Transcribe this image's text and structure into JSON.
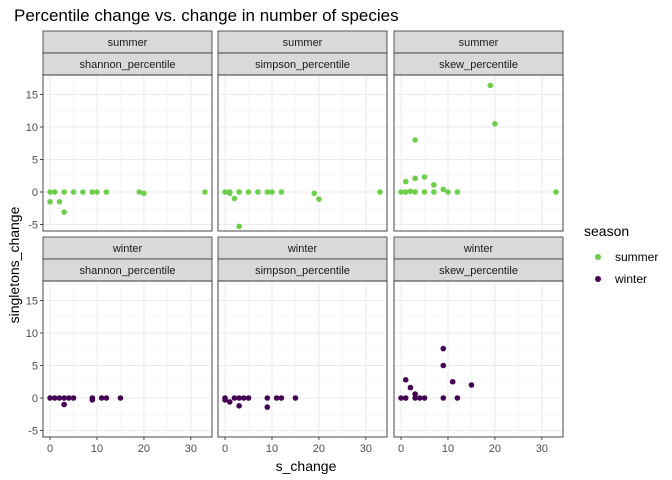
{
  "chart_data": {
    "type": "scatter",
    "title": "Percentile change vs. change in number of species",
    "xlabel": "s_change",
    "ylabel": "singletons_change",
    "xlim": [
      -1.5,
      34.5
    ],
    "ylim": [
      -6,
      18
    ],
    "x_ticks": [
      0,
      10,
      20,
      30
    ],
    "y_ticks": [
      -5,
      0,
      5,
      10,
      15
    ],
    "grid": true,
    "facet_rows": [
      "summer",
      "winter"
    ],
    "facet_cols": [
      "shannon_percentile",
      "simpson_percentile",
      "skew_percentile"
    ],
    "legend": {
      "title": "season",
      "position": "right",
      "entries": [
        {
          "label": "summer",
          "color": "#6CCE4B"
        },
        {
          "label": "winter",
          "color": "#440154"
        }
      ]
    },
    "panels": [
      {
        "season": "summer",
        "metric": "shannon_percentile",
        "color": "#6CCE4B",
        "points": [
          [
            0,
            -1.5
          ],
          [
            0,
            0
          ],
          [
            1,
            0
          ],
          [
            2,
            -1.5
          ],
          [
            3,
            0
          ],
          [
            3,
            -3.1
          ],
          [
            5,
            0
          ],
          [
            7,
            0
          ],
          [
            9,
            0
          ],
          [
            10,
            0
          ],
          [
            12,
            0
          ],
          [
            19,
            0
          ],
          [
            20,
            -0.2
          ],
          [
            33,
            0
          ]
        ]
      },
      {
        "season": "summer",
        "metric": "simpson_percentile",
        "color": "#6CCE4B",
        "points": [
          [
            0,
            0
          ],
          [
            1,
            0
          ],
          [
            1,
            -0.2
          ],
          [
            2,
            -1
          ],
          [
            3,
            0
          ],
          [
            3,
            -5.3
          ],
          [
            5,
            0
          ],
          [
            7,
            0
          ],
          [
            9,
            0
          ],
          [
            10,
            0
          ],
          [
            12,
            0
          ],
          [
            19,
            -0.2
          ],
          [
            20,
            -1.1
          ],
          [
            33,
            0
          ]
        ]
      },
      {
        "season": "summer",
        "metric": "skew_percentile",
        "color": "#6CCE4B",
        "points": [
          [
            0,
            0
          ],
          [
            1,
            0
          ],
          [
            1,
            1.6
          ],
          [
            2,
            0.1
          ],
          [
            3,
            2.1
          ],
          [
            3,
            8
          ],
          [
            3,
            0
          ],
          [
            5,
            0
          ],
          [
            5,
            2.3
          ],
          [
            7,
            1.1
          ],
          [
            7,
            0
          ],
          [
            9,
            0.4
          ],
          [
            10,
            0
          ],
          [
            12,
            0
          ],
          [
            19,
            16.4
          ],
          [
            20,
            10.5
          ],
          [
            33,
            0
          ]
        ]
      },
      {
        "season": "winter",
        "metric": "shannon_percentile",
        "color": "#440154",
        "points": [
          [
            0,
            0
          ],
          [
            1,
            0
          ],
          [
            2,
            0
          ],
          [
            3,
            0
          ],
          [
            3,
            -1
          ],
          [
            4,
            0
          ],
          [
            5,
            0
          ],
          [
            9,
            0
          ],
          [
            9,
            -0.3
          ],
          [
            11,
            0
          ],
          [
            12,
            0
          ],
          [
            15,
            0
          ]
        ]
      },
      {
        "season": "winter",
        "metric": "simpson_percentile",
        "color": "#440154",
        "points": [
          [
            0,
            0
          ],
          [
            0,
            -0.3
          ],
          [
            1,
            -0.6
          ],
          [
            2,
            0
          ],
          [
            3,
            0
          ],
          [
            3,
            -1.2
          ],
          [
            4,
            0
          ],
          [
            5,
            0
          ],
          [
            9,
            0
          ],
          [
            9,
            -1.4
          ],
          [
            11,
            0
          ],
          [
            12,
            0
          ],
          [
            15,
            0
          ]
        ]
      },
      {
        "season": "winter",
        "metric": "skew_percentile",
        "color": "#440154",
        "points": [
          [
            0,
            0
          ],
          [
            1,
            0
          ],
          [
            1,
            2.8
          ],
          [
            2,
            1.6
          ],
          [
            3,
            0
          ],
          [
            3,
            0.6
          ],
          [
            4,
            0
          ],
          [
            5,
            0
          ],
          [
            9,
            7.6
          ],
          [
            9,
            5
          ],
          [
            9,
            0
          ],
          [
            11,
            2.5
          ],
          [
            12,
            0
          ],
          [
            15,
            2
          ]
        ]
      }
    ]
  }
}
